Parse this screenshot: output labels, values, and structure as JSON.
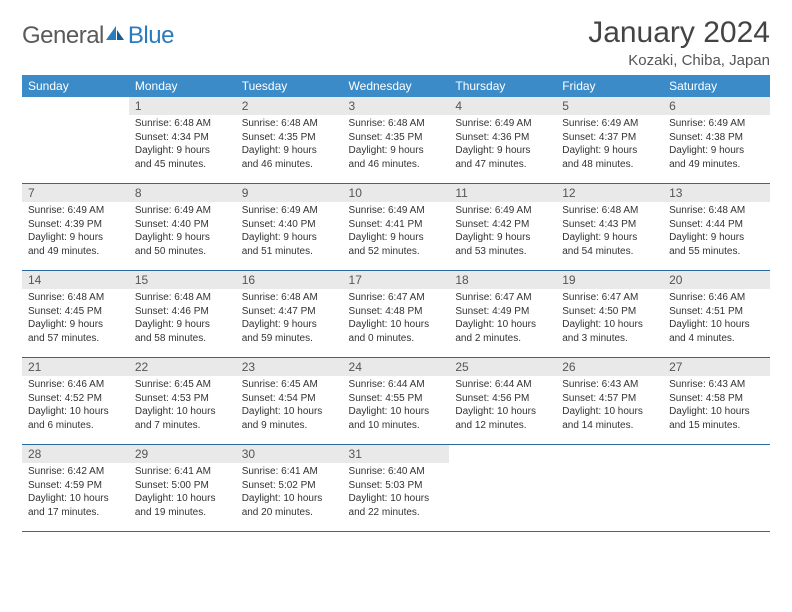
{
  "header": {
    "logo_general": "General",
    "logo_blue": "Blue",
    "month_title": "January 2024",
    "location": "Kozaki, Chiba, Japan"
  },
  "style": {
    "header_bg": "#3b8bc9",
    "header_fg": "#ffffff",
    "daynum_bg": "#e9e9e9",
    "row_border": "#2b6aa0",
    "logo_gray": "#5a5a5a",
    "logo_blue": "#2b7bbf"
  },
  "weekdays": [
    "Sunday",
    "Monday",
    "Tuesday",
    "Wednesday",
    "Thursday",
    "Friday",
    "Saturday"
  ],
  "weeks": [
    [
      {
        "n": "",
        "sr": "",
        "ss": "",
        "d1": "",
        "d2": "",
        "empty": true
      },
      {
        "n": "1",
        "sr": "Sunrise: 6:48 AM",
        "ss": "Sunset: 4:34 PM",
        "d1": "Daylight: 9 hours",
        "d2": "and 45 minutes."
      },
      {
        "n": "2",
        "sr": "Sunrise: 6:48 AM",
        "ss": "Sunset: 4:35 PM",
        "d1": "Daylight: 9 hours",
        "d2": "and 46 minutes."
      },
      {
        "n": "3",
        "sr": "Sunrise: 6:48 AM",
        "ss": "Sunset: 4:35 PM",
        "d1": "Daylight: 9 hours",
        "d2": "and 46 minutes."
      },
      {
        "n": "4",
        "sr": "Sunrise: 6:49 AM",
        "ss": "Sunset: 4:36 PM",
        "d1": "Daylight: 9 hours",
        "d2": "and 47 minutes."
      },
      {
        "n": "5",
        "sr": "Sunrise: 6:49 AM",
        "ss": "Sunset: 4:37 PM",
        "d1": "Daylight: 9 hours",
        "d2": "and 48 minutes."
      },
      {
        "n": "6",
        "sr": "Sunrise: 6:49 AM",
        "ss": "Sunset: 4:38 PM",
        "d1": "Daylight: 9 hours",
        "d2": "and 49 minutes."
      }
    ],
    [
      {
        "n": "7",
        "sr": "Sunrise: 6:49 AM",
        "ss": "Sunset: 4:39 PM",
        "d1": "Daylight: 9 hours",
        "d2": "and 49 minutes."
      },
      {
        "n": "8",
        "sr": "Sunrise: 6:49 AM",
        "ss": "Sunset: 4:40 PM",
        "d1": "Daylight: 9 hours",
        "d2": "and 50 minutes."
      },
      {
        "n": "9",
        "sr": "Sunrise: 6:49 AM",
        "ss": "Sunset: 4:40 PM",
        "d1": "Daylight: 9 hours",
        "d2": "and 51 minutes."
      },
      {
        "n": "10",
        "sr": "Sunrise: 6:49 AM",
        "ss": "Sunset: 4:41 PM",
        "d1": "Daylight: 9 hours",
        "d2": "and 52 minutes."
      },
      {
        "n": "11",
        "sr": "Sunrise: 6:49 AM",
        "ss": "Sunset: 4:42 PM",
        "d1": "Daylight: 9 hours",
        "d2": "and 53 minutes."
      },
      {
        "n": "12",
        "sr": "Sunrise: 6:48 AM",
        "ss": "Sunset: 4:43 PM",
        "d1": "Daylight: 9 hours",
        "d2": "and 54 minutes."
      },
      {
        "n": "13",
        "sr": "Sunrise: 6:48 AM",
        "ss": "Sunset: 4:44 PM",
        "d1": "Daylight: 9 hours",
        "d2": "and 55 minutes."
      }
    ],
    [
      {
        "n": "14",
        "sr": "Sunrise: 6:48 AM",
        "ss": "Sunset: 4:45 PM",
        "d1": "Daylight: 9 hours",
        "d2": "and 57 minutes."
      },
      {
        "n": "15",
        "sr": "Sunrise: 6:48 AM",
        "ss": "Sunset: 4:46 PM",
        "d1": "Daylight: 9 hours",
        "d2": "and 58 minutes."
      },
      {
        "n": "16",
        "sr": "Sunrise: 6:48 AM",
        "ss": "Sunset: 4:47 PM",
        "d1": "Daylight: 9 hours",
        "d2": "and 59 minutes."
      },
      {
        "n": "17",
        "sr": "Sunrise: 6:47 AM",
        "ss": "Sunset: 4:48 PM",
        "d1": "Daylight: 10 hours",
        "d2": "and 0 minutes."
      },
      {
        "n": "18",
        "sr": "Sunrise: 6:47 AM",
        "ss": "Sunset: 4:49 PM",
        "d1": "Daylight: 10 hours",
        "d2": "and 2 minutes."
      },
      {
        "n": "19",
        "sr": "Sunrise: 6:47 AM",
        "ss": "Sunset: 4:50 PM",
        "d1": "Daylight: 10 hours",
        "d2": "and 3 minutes."
      },
      {
        "n": "20",
        "sr": "Sunrise: 6:46 AM",
        "ss": "Sunset: 4:51 PM",
        "d1": "Daylight: 10 hours",
        "d2": "and 4 minutes."
      }
    ],
    [
      {
        "n": "21",
        "sr": "Sunrise: 6:46 AM",
        "ss": "Sunset: 4:52 PM",
        "d1": "Daylight: 10 hours",
        "d2": "and 6 minutes."
      },
      {
        "n": "22",
        "sr": "Sunrise: 6:45 AM",
        "ss": "Sunset: 4:53 PM",
        "d1": "Daylight: 10 hours",
        "d2": "and 7 minutes."
      },
      {
        "n": "23",
        "sr": "Sunrise: 6:45 AM",
        "ss": "Sunset: 4:54 PM",
        "d1": "Daylight: 10 hours",
        "d2": "and 9 minutes."
      },
      {
        "n": "24",
        "sr": "Sunrise: 6:44 AM",
        "ss": "Sunset: 4:55 PM",
        "d1": "Daylight: 10 hours",
        "d2": "and 10 minutes."
      },
      {
        "n": "25",
        "sr": "Sunrise: 6:44 AM",
        "ss": "Sunset: 4:56 PM",
        "d1": "Daylight: 10 hours",
        "d2": "and 12 minutes."
      },
      {
        "n": "26",
        "sr": "Sunrise: 6:43 AM",
        "ss": "Sunset: 4:57 PM",
        "d1": "Daylight: 10 hours",
        "d2": "and 14 minutes."
      },
      {
        "n": "27",
        "sr": "Sunrise: 6:43 AM",
        "ss": "Sunset: 4:58 PM",
        "d1": "Daylight: 10 hours",
        "d2": "and 15 minutes."
      }
    ],
    [
      {
        "n": "28",
        "sr": "Sunrise: 6:42 AM",
        "ss": "Sunset: 4:59 PM",
        "d1": "Daylight: 10 hours",
        "d2": "and 17 minutes."
      },
      {
        "n": "29",
        "sr": "Sunrise: 6:41 AM",
        "ss": "Sunset: 5:00 PM",
        "d1": "Daylight: 10 hours",
        "d2": "and 19 minutes."
      },
      {
        "n": "30",
        "sr": "Sunrise: 6:41 AM",
        "ss": "Sunset: 5:02 PM",
        "d1": "Daylight: 10 hours",
        "d2": "and 20 minutes."
      },
      {
        "n": "31",
        "sr": "Sunrise: 6:40 AM",
        "ss": "Sunset: 5:03 PM",
        "d1": "Daylight: 10 hours",
        "d2": "and 22 minutes."
      },
      {
        "n": "",
        "sr": "",
        "ss": "",
        "d1": "",
        "d2": "",
        "empty": true
      },
      {
        "n": "",
        "sr": "",
        "ss": "",
        "d1": "",
        "d2": "",
        "empty": true
      },
      {
        "n": "",
        "sr": "",
        "ss": "",
        "d1": "",
        "d2": "",
        "empty": true
      }
    ]
  ]
}
